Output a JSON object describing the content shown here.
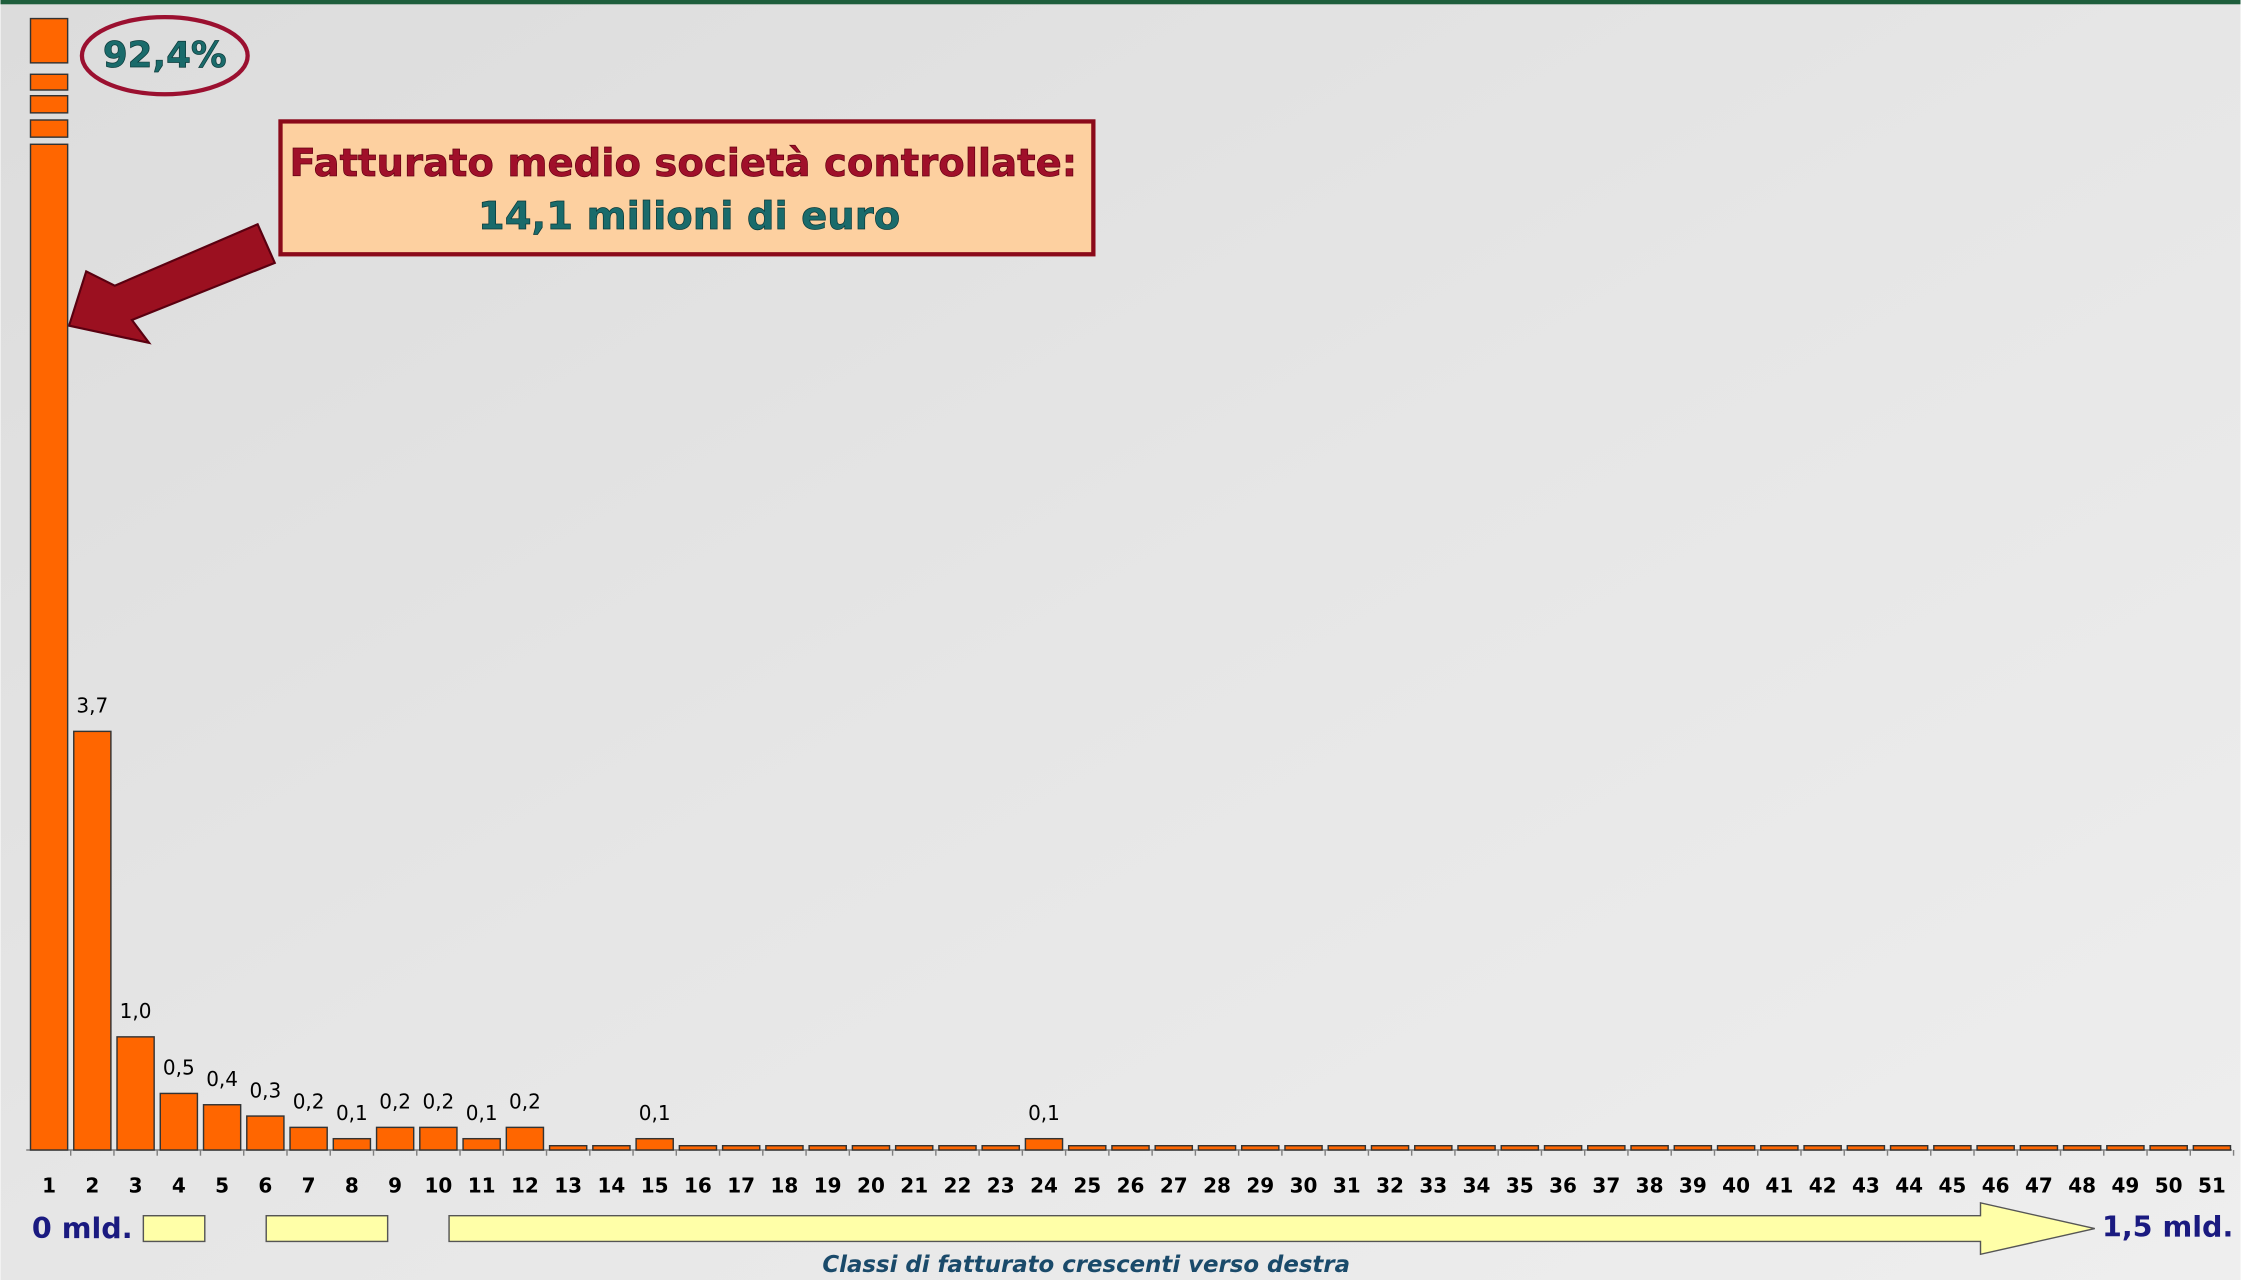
{
  "chart_data": {
    "type": "bar",
    "categories": [
      "1",
      "2",
      "3",
      "4",
      "5",
      "6",
      "7",
      "8",
      "9",
      "10",
      "11",
      "12",
      "13",
      "14",
      "15",
      "16",
      "17",
      "18",
      "19",
      "20",
      "21",
      "22",
      "23",
      "24",
      "25",
      "26",
      "27",
      "28",
      "29",
      "30",
      "31",
      "32",
      "33",
      "34",
      "35",
      "36",
      "37",
      "38",
      "39",
      "40",
      "41",
      "42",
      "43",
      "44",
      "45",
      "46",
      "47",
      "48",
      "49",
      "50",
      "51"
    ],
    "values": [
      92.4,
      3.7,
      1.0,
      0.5,
      0.4,
      0.3,
      0.2,
      0.1,
      0.2,
      0.2,
      0.1,
      0.2,
      0.03,
      0.03,
      0.1,
      0,
      0.03,
      0.03,
      0,
      0,
      0.03,
      0,
      0,
      0.1,
      0,
      0,
      0,
      0.03,
      0,
      0,
      0,
      0,
      0,
      0.03,
      0,
      0,
      0.03,
      0,
      0,
      0,
      0,
      0,
      0,
      0,
      0,
      0,
      0,
      0,
      0,
      0,
      0.03
    ],
    "value_labels": [
      "92,4%",
      "3,7",
      "1,0",
      "0,5",
      "0,4",
      "0,3",
      "0,2",
      "0,1",
      "0,2",
      "0,2",
      "0,1",
      "0,2",
      null,
      null,
      "0,1",
      null,
      null,
      null,
      null,
      null,
      null,
      null,
      null,
      "0,1",
      null,
      null,
      null,
      null,
      null,
      null,
      null,
      null,
      null,
      null,
      null,
      null,
      null,
      null,
      null,
      null,
      null,
      null,
      null,
      null,
      null,
      null,
      null,
      null,
      null,
      null,
      null
    ],
    "color": "#ff6600",
    "ylim": [
      0,
      10
    ],
    "annotation_line1": "Fatturato medio società controllate:",
    "annotation_line2": "14,1 milioni di euro",
    "x_start_label": "0 mld.",
    "x_end_label": "1,5 mld.",
    "x_axis_label": "Classi di fatturato crescenti verso destra"
  }
}
